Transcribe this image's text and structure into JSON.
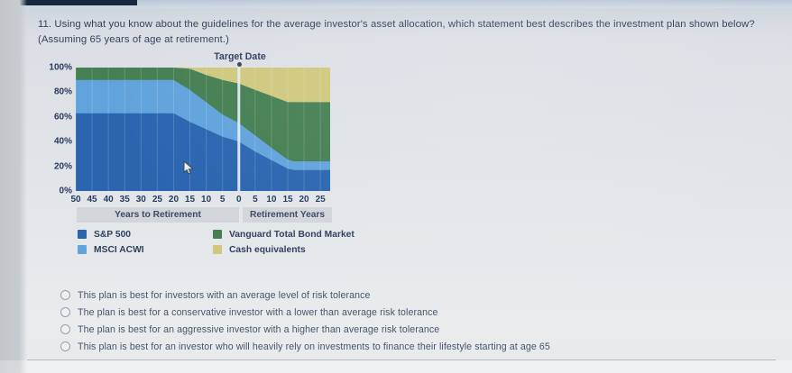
{
  "page": {
    "background": "#e1e4e8",
    "divider_color": "#b5b9bf",
    "text_color": "#31425e"
  },
  "question": {
    "number": "11",
    "text": "11. Using what you know about the guidelines for the average investor's asset allocation, which statement best describes the investment plan shown below? (Assuming 65 years of age at retirement.)"
  },
  "chart_data": {
    "type": "area",
    "stacked": true,
    "annotation": "Target Date",
    "target_date_x": 0,
    "x_years_relative_to_retirement": [
      -50,
      -20,
      -15,
      -10,
      -5,
      0,
      5,
      10,
      15,
      17,
      28
    ],
    "series": [
      {
        "name": "S&P 500",
        "color": "#2b65b0",
        "values": [
          63,
          63,
          56,
          50,
          44,
          40,
          32,
          25,
          18,
          17,
          17
        ]
      },
      {
        "name": "MSCI ACWI",
        "color": "#61a3dc",
        "values": [
          27,
          27,
          26,
          22,
          18,
          15,
          13,
          10,
          7.5,
          7,
          7
        ]
      },
      {
        "name": "Vanguard Total Bond Market",
        "color": "#457f52",
        "values": [
          10,
          10,
          17,
          22,
          28,
          32,
          37,
          42,
          46.5,
          48,
          48
        ]
      },
      {
        "name": "Cash equivalents",
        "color": "#cfc87e",
        "values": [
          0,
          0,
          1,
          6,
          10,
          13,
          18,
          23,
          28,
          28,
          28
        ]
      }
    ],
    "ylim": [
      0,
      100
    ],
    "xlim": [
      -50,
      28
    ],
    "y_tick_labels": [
      "100%",
      "80%",
      "60%",
      "40%",
      "20%",
      "0%"
    ],
    "x_tick_labels": [
      "50",
      "45",
      "40",
      "35",
      "30",
      "25",
      "20",
      "15",
      "10",
      "5",
      "0",
      "5",
      "10",
      "15",
      "20",
      "25"
    ],
    "x_axis_group_labels": [
      "Years to Retirement",
      "Retirement Years"
    ],
    "grid": "vertical gridlines at 5-year ticks",
    "legend_position": "bottom, two columns",
    "target_line_color": "#e4edf5"
  },
  "options": [
    {
      "label": "This plan is best for investors with an average level of risk tolerance",
      "selected": false
    },
    {
      "label": "The plan is best for a conservative investor with a lower than average risk tolerance",
      "selected": false
    },
    {
      "label": "The plan is best for an aggressive investor with a higher than average risk tolerance",
      "selected": false
    },
    {
      "label": "This plan is best for an investor who will heavily rely on investments to finance their lifestyle starting at age 65",
      "selected": false
    }
  ]
}
